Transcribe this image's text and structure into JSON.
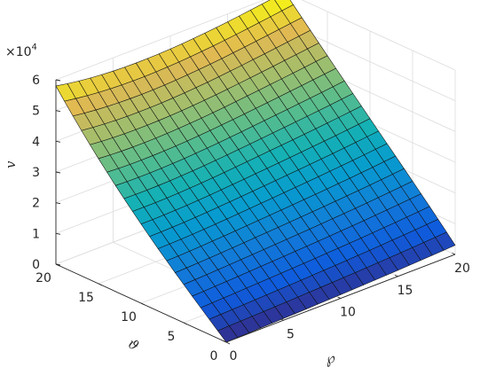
{
  "chart_data": {
    "type": "surface3d",
    "title": "",
    "xlabel": "℘",
    "ylabel": "ϑ",
    "zlabel": "v",
    "exponent_label": "×10",
    "exponent_power": "4",
    "xlim": [
      0,
      20
    ],
    "ylim": [
      0,
      20
    ],
    "zlim": [
      0,
      60000
    ],
    "x_ticks": [
      "0",
      "5",
      "10",
      "15",
      "20"
    ],
    "y_ticks": [
      "0",
      "5",
      "10",
      "15",
      "20"
    ],
    "z_ticks": [
      "0",
      "1",
      "2",
      "3",
      "4",
      "5",
      "6"
    ],
    "grid": true,
    "colormap": "parula",
    "surface_description_free": true,
    "x": [
      0,
      1,
      2,
      3,
      4,
      5,
      6,
      7,
      8,
      9,
      10,
      11,
      12,
      13,
      14,
      15,
      16,
      17,
      18,
      19,
      20
    ],
    "y": [
      0,
      1,
      2,
      3,
      4,
      5,
      6,
      7,
      8,
      9,
      10,
      11,
      12,
      13,
      14,
      15,
      16,
      17,
      18,
      19,
      20
    ],
    "corner_values": {
      "x0_y0": 0,
      "x20_y0": 3000,
      "x0_y20": 58000,
      "x20_y20": 60000
    }
  }
}
